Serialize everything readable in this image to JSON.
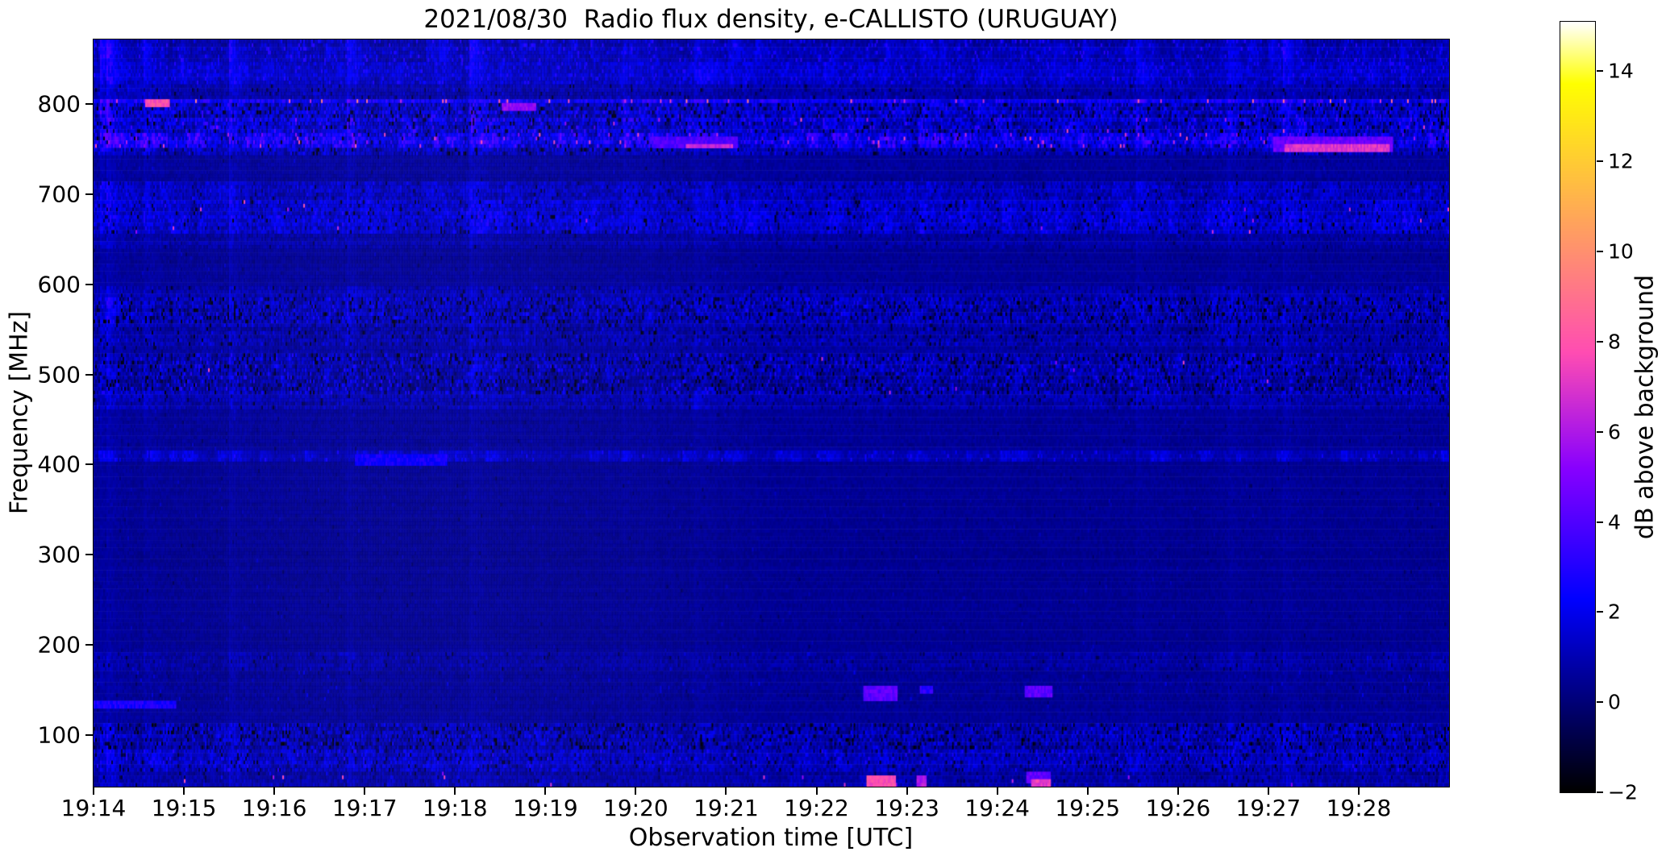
{
  "chart_data": {
    "type": "heatmap",
    "subtype": "radio-spectrogram",
    "title": "2021/08/30  Radio flux density, e-CALLISTO (URUGUAY)",
    "xlabel": "Observation time [UTC]",
    "ylabel": "Frequency [MHz]",
    "x_ticks": [
      "19:14",
      "19:15",
      "19:16",
      "19:17",
      "19:18",
      "19:19",
      "19:20",
      "19:21",
      "19:22",
      "19:23",
      "19:24",
      "19:25",
      "19:26",
      "19:27",
      "19:28"
    ],
    "x_start": "19:14",
    "x_end": "19:29",
    "x_span_minutes": 15,
    "y_ticks": [
      100,
      200,
      300,
      400,
      500,
      600,
      700,
      800
    ],
    "ylim": [
      42.8,
      871.5
    ],
    "grid": false,
    "legend": "none",
    "colorbar": {
      "label": "dB above background",
      "ticks": [
        -2,
        0,
        2,
        4,
        6,
        8,
        10,
        12,
        14
      ],
      "vmin": -2,
      "vmax": 15.1,
      "colormap": "gnuplot2"
    },
    "background_level_db": 0.5,
    "bands": [
      {
        "f1": 871.5,
        "f2": 848,
        "base": 0.9,
        "jit": 0.7,
        "col": 1.1,
        "spP": 0.1,
        "spLo": 1.8,
        "spHi": 3.2,
        "segP": 0.05,
        "segA": 1.2,
        "pkP": 0
      },
      {
        "f1": 848,
        "f2": 820,
        "base": 1.25,
        "jit": 0.8,
        "col": 0.9,
        "spP": 0.12,
        "spLo": 1.8,
        "spHi": 3.0,
        "segP": 0.06,
        "segA": 1.0,
        "pkP": 0
      },
      {
        "f1": 820,
        "f2": 806,
        "base": 0.8,
        "jit": 0.7,
        "col": 0.6,
        "spP": 0.1,
        "spLo": -1.5,
        "spHi": 2.2,
        "segP": 0.02,
        "segA": 0.8,
        "pkP": 0
      },
      {
        "f1": 806,
        "f2": 799,
        "base": 2.0,
        "jit": 1.0,
        "col": 1.2,
        "spP": 0.06,
        "spLo": 6.0,
        "spHi": 9.5,
        "segP": 0.15,
        "segA": 1.6,
        "pkP": 0
      },
      {
        "f1": 799,
        "f2": 784,
        "base": 1.1,
        "jit": 1.3,
        "col": 0.9,
        "spP": 0.28,
        "spLo": -2,
        "spHi": 3.4,
        "segP": 0.05,
        "segA": 1.2,
        "pkP": 0
      },
      {
        "f1": 784,
        "f2": 767,
        "base": 1.4,
        "jit": 1.3,
        "col": 0.9,
        "spP": 0.22,
        "spLo": -2,
        "spHi": 3.8,
        "segP": 0.06,
        "segA": 1.4,
        "pkP": 0.004
      },
      {
        "f1": 767,
        "f2": 751,
        "base": 1.7,
        "jit": 1.4,
        "col": 1.0,
        "spP": 0.1,
        "spLo": -2,
        "spHi": 4.2,
        "segP": 0.12,
        "segA": 2.4,
        "pkP": 0.02
      },
      {
        "f1": 751,
        "f2": 744,
        "base": 0.9,
        "jit": 1.0,
        "col": 0.6,
        "spP": 0.18,
        "spLo": -2,
        "spHi": 2.6,
        "segP": 0.03,
        "segA": 1.0,
        "pkP": 0
      },
      {
        "f1": 744,
        "f2": 712,
        "base": 0.55,
        "jit": 0.4,
        "col": 0.3,
        "spP": 0.02,
        "spLo": -0.6,
        "spHi": 1.6,
        "segP": 0,
        "segA": 0,
        "pkP": 0
      },
      {
        "f1": 712,
        "f2": 694,
        "base": 1.15,
        "jit": 0.9,
        "col": 0.7,
        "spP": 0.1,
        "spLo": -1.2,
        "spHi": 2.6,
        "segP": 0.04,
        "segA": 1.0,
        "pkP": 0
      },
      {
        "f1": 694,
        "f2": 656,
        "base": 1.25,
        "jit": 1.0,
        "col": 0.7,
        "spP": 0.14,
        "spLo": -1.8,
        "spHi": 3.0,
        "segP": 0.05,
        "segA": 1.2,
        "pkP": 0.002
      },
      {
        "f1": 656,
        "f2": 640,
        "base": 0.75,
        "jit": 0.6,
        "col": 0.4,
        "spP": 0.05,
        "spLo": -1.0,
        "spHi": 1.8,
        "segP": 0,
        "segA": 0,
        "pkP": 0
      },
      {
        "f1": 640,
        "f2": 598,
        "base": 0.5,
        "jit": 0.35,
        "col": 0.25,
        "spP": 0.02,
        "spLo": -0.5,
        "spHi": 1.4,
        "segP": 0,
        "segA": 0,
        "pkP": 0
      },
      {
        "f1": 598,
        "f2": 585,
        "base": 0.85,
        "jit": 0.7,
        "col": 0.5,
        "spP": 0.12,
        "spLo": -1.5,
        "spHi": 2.2,
        "segP": 0.02,
        "segA": 0.8,
        "pkP": 0
      },
      {
        "f1": 585,
        "f2": 556,
        "base": 0.75,
        "jit": 1.0,
        "col": 0.6,
        "spP": 0.34,
        "spLo": -2,
        "spHi": 2.8,
        "segP": 0.03,
        "segA": 0.9,
        "pkP": 0
      },
      {
        "f1": 556,
        "f2": 531,
        "base": 0.8,
        "jit": 0.8,
        "col": 0.5,
        "spP": 0.16,
        "spLo": -1.8,
        "spHi": 2.4,
        "segP": 0.02,
        "segA": 0.7,
        "pkP": 0
      },
      {
        "f1": 531,
        "f2": 524,
        "base": 0.6,
        "jit": 0.5,
        "col": 0.3,
        "spP": 0.06,
        "spLo": -1.0,
        "spHi": 1.8,
        "segP": 0,
        "segA": 0,
        "pkP": 0
      },
      {
        "f1": 524,
        "f2": 478,
        "base": 0.75,
        "jit": 1.0,
        "col": 0.6,
        "spP": 0.32,
        "spLo": -2,
        "spHi": 3.0,
        "segP": 0.03,
        "segA": 0.9,
        "pkP": 0.001
      },
      {
        "f1": 478,
        "f2": 462,
        "base": 0.85,
        "jit": 0.7,
        "col": 0.4,
        "spP": 0.1,
        "spLo": -1.4,
        "spHi": 2.0,
        "segP": 0.02,
        "segA": 0.6,
        "pkP": 0
      },
      {
        "f1": 462,
        "f2": 415,
        "base": 0.5,
        "jit": 0.35,
        "col": 0.25,
        "spP": 0.02,
        "spLo": -0.5,
        "spHi": 1.4,
        "segP": 0,
        "segA": 0,
        "pkP": 0
      },
      {
        "f1": 415,
        "f2": 403,
        "base": 0.9,
        "jit": 0.5,
        "col": 0.3,
        "spP": 0.04,
        "spLo": 1.6,
        "spHi": 2.8,
        "segP": 0.06,
        "segA": 1.6,
        "pkP": 0
      },
      {
        "f1": 403,
        "f2": 190,
        "base": 0.45,
        "jit": 0.3,
        "col": 0.2,
        "spP": 0.015,
        "spLo": -0.5,
        "spHi": 1.3,
        "segP": 0,
        "segA": 0,
        "pkP": 0
      },
      {
        "f1": 190,
        "f2": 172,
        "base": 0.65,
        "jit": 0.55,
        "col": 0.35,
        "spP": 0.08,
        "spLo": -1.0,
        "spHi": 1.8,
        "segP": 0.02,
        "segA": 0.5,
        "pkP": 0
      },
      {
        "f1": 172,
        "f2": 138,
        "base": 0.5,
        "jit": 0.4,
        "col": 0.25,
        "spP": 0.03,
        "spLo": -0.6,
        "spHi": 1.9,
        "segP": 0,
        "segA": 0,
        "pkP": 0
      },
      {
        "f1": 138,
        "f2": 112,
        "base": 0.5,
        "jit": 0.35,
        "col": 0.25,
        "spP": 0.02,
        "spLo": -0.5,
        "spHi": 1.4,
        "segP": 0,
        "segA": 0,
        "pkP": 0
      },
      {
        "f1": 112,
        "f2": 84,
        "base": 0.8,
        "jit": 1.1,
        "col": 0.6,
        "spP": 0.3,
        "spLo": -2,
        "spHi": 2.6,
        "segP": 0.03,
        "segA": 0.8,
        "pkP": 0
      },
      {
        "f1": 84,
        "f2": 58,
        "base": 1.05,
        "jit": 0.9,
        "col": 0.6,
        "spP": 0.2,
        "spLo": -1.5,
        "spHi": 3.0,
        "segP": 0.04,
        "segA": 1.0,
        "pkP": 0
      },
      {
        "f1": 58,
        "f2": 42.8,
        "base": 0.7,
        "jit": 0.7,
        "col": 0.4,
        "spP": 0.08,
        "spLo": -1.2,
        "spHi": 2.2,
        "segP": 0.02,
        "segA": 0.8,
        "pkP": 0.005
      }
    ],
    "features": [
      {
        "t": 0.45,
        "f": 135,
        "w": 0.9,
        "h": 3,
        "v": 2.8
      },
      {
        "t": 0.7,
        "f": 802,
        "w": 0.25,
        "h": 4,
        "v": 8.0
      },
      {
        "t": 3.4,
        "f": 408,
        "w": 1.0,
        "h": 6,
        "v": 2.6
      },
      {
        "t": 4.7,
        "f": 800,
        "w": 0.35,
        "h": 5,
        "v": 5.5
      },
      {
        "t": 6.65,
        "f": 759,
        "w": 0.9,
        "h": 11,
        "v": 4.0
      },
      {
        "t": 6.8,
        "f": 755,
        "w": 0.5,
        "h": 3,
        "v": 6.5
      },
      {
        "t": 8.7,
        "f": 150,
        "w": 0.35,
        "h": 12,
        "v": 4.3
      },
      {
        "t": 9.2,
        "f": 154,
        "w": 0.12,
        "h": 5,
        "v": 3.2
      },
      {
        "t": 10.45,
        "f": 151,
        "w": 0.28,
        "h": 10,
        "v": 4.3
      },
      {
        "t": 8.7,
        "f": 50,
        "w": 0.3,
        "h": 11,
        "v": 7.8
      },
      {
        "t": 9.15,
        "f": 49,
        "w": 0.08,
        "h": 9,
        "v": 6.0
      },
      {
        "t": 10.45,
        "f": 57,
        "w": 0.25,
        "h": 8,
        "v": 4.4
      },
      {
        "t": 10.47,
        "f": 48,
        "w": 0.2,
        "h": 8,
        "v": 7.2
      },
      {
        "t": 13.7,
        "f": 757,
        "w": 1.3,
        "h": 10,
        "v": 4.5
      },
      {
        "t": 13.75,
        "f": 753,
        "w": 1.15,
        "h": 3,
        "v": 7.0
      }
    ],
    "colors": {
      "figure_background": "#ffffff",
      "axis_text": "#000000",
      "quiet_background_navy": "#000090",
      "cmap_low": "#000000",
      "cmap_high": "#ffffff"
    }
  }
}
